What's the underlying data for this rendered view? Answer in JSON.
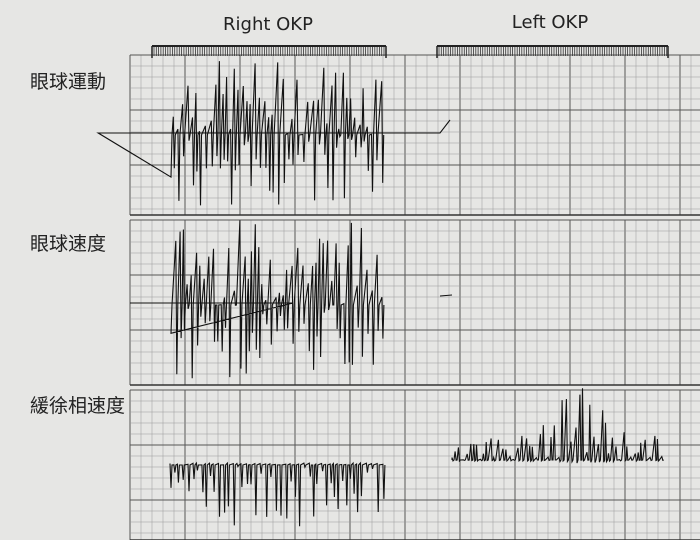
{
  "header": {
    "conditions": [
      "Right OKP",
      "Left OKP"
    ]
  },
  "rows": [
    {
      "label": "眼球運動"
    },
    {
      "label": "眼球速度"
    },
    {
      "label": "緩徐相速度"
    }
  ]
}
